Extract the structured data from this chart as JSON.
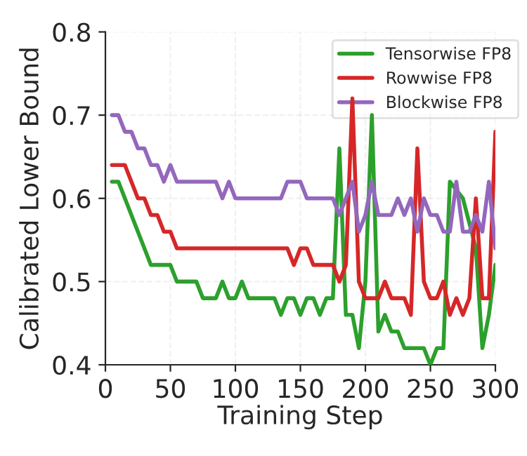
{
  "chart_data": {
    "type": "line",
    "xlabel": "Training Step",
    "ylabel": "Calibrated Lower Bound",
    "x": [
      5,
      10,
      15,
      20,
      25,
      30,
      35,
      40,
      45,
      50,
      55,
      60,
      65,
      70,
      75,
      80,
      85,
      90,
      95,
      100,
      105,
      110,
      115,
      120,
      125,
      130,
      135,
      140,
      145,
      150,
      155,
      160,
      165,
      170,
      175,
      180,
      185,
      190,
      195,
      200,
      205,
      210,
      215,
      220,
      225,
      230,
      235,
      240,
      245,
      250,
      255,
      260,
      265,
      270,
      275,
      280,
      285,
      290,
      295,
      300
    ],
    "series": [
      {
        "name": "Tensorwise FP8",
        "color": "#2ca02c",
        "values": [
          0.62,
          0.62,
          0.6,
          0.58,
          0.56,
          0.54,
          0.52,
          0.52,
          0.52,
          0.52,
          0.5,
          0.5,
          0.5,
          0.5,
          0.48,
          0.48,
          0.48,
          0.5,
          0.48,
          0.48,
          0.5,
          0.48,
          0.48,
          0.48,
          0.48,
          0.48,
          0.46,
          0.48,
          0.48,
          0.46,
          0.48,
          0.48,
          0.46,
          0.48,
          0.48,
          0.66,
          0.46,
          0.46,
          0.42,
          0.5,
          0.7,
          0.44,
          0.46,
          0.44,
          0.44,
          0.42,
          0.42,
          0.42,
          0.42,
          0.4,
          0.42,
          0.42,
          0.62,
          null,
          0.6,
          null,
          0.54,
          0.42,
          0.46,
          0.52
        ]
      },
      {
        "name": "Rowwise FP8",
        "color": "#d62728",
        "values": [
          0.64,
          0.64,
          0.64,
          0.62,
          0.6,
          0.6,
          0.58,
          0.58,
          0.56,
          0.56,
          0.54,
          0.54,
          0.54,
          0.54,
          0.54,
          0.54,
          0.54,
          0.54,
          0.54,
          0.54,
          0.54,
          0.54,
          0.54,
          0.54,
          0.54,
          0.54,
          0.54,
          0.54,
          0.52,
          0.54,
          0.54,
          0.52,
          0.52,
          0.52,
          0.52,
          0.5,
          0.52,
          0.72,
          0.5,
          0.48,
          0.48,
          0.48,
          0.5,
          0.48,
          0.48,
          0.48,
          0.46,
          0.66,
          0.5,
          0.48,
          0.48,
          0.5,
          0.46,
          0.48,
          0.46,
          0.48,
          0.6,
          0.48,
          0.48,
          0.68
        ]
      },
      {
        "name": "Blockwise FP8",
        "color": "#9467bd",
        "values": [
          0.7,
          0.7,
          0.68,
          0.68,
          0.66,
          0.66,
          0.64,
          0.64,
          0.62,
          0.64,
          0.62,
          0.62,
          0.62,
          0.62,
          0.62,
          0.62,
          0.62,
          0.6,
          0.62,
          0.6,
          0.6,
          0.6,
          0.6,
          0.6,
          0.6,
          0.6,
          0.6,
          0.62,
          0.62,
          0.62,
          0.6,
          0.6,
          0.6,
          0.6,
          0.6,
          0.58,
          0.6,
          0.62,
          0.56,
          0.58,
          0.62,
          0.58,
          0.58,
          0.58,
          0.6,
          0.58,
          0.6,
          0.56,
          0.6,
          0.58,
          0.58,
          0.56,
          0.56,
          0.62,
          0.56,
          0.56,
          0.58,
          0.56,
          0.62,
          0.54
        ]
      }
    ],
    "xlim": [
      0,
      300
    ],
    "xticks": [
      0,
      50,
      100,
      150,
      200,
      250,
      300
    ],
    "ylim": [
      0.4,
      0.8
    ],
    "yticks": [
      {
        "value": 0.4,
        "label": "0.4"
      },
      {
        "value": 0.5,
        "label": "0.5"
      },
      {
        "value": 0.6,
        "label": "0.6"
      },
      {
        "value": 0.7,
        "label": "0.7"
      },
      {
        "value": 0.8,
        "label": "0.8"
      }
    ],
    "grid": true,
    "legend": "top right",
    "line_style": "solid",
    "marker": "none"
  }
}
